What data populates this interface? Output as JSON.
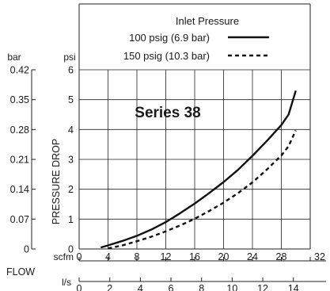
{
  "chart_data": {
    "type": "line",
    "title": "Series 38",
    "legend": {
      "title": "Inlet Pressure",
      "placement": "top",
      "entries": [
        {
          "label": "100 psig (6.9 bar)",
          "style": "solid"
        },
        {
          "label": "150 psig (10.3 bar)",
          "style": "dashed"
        }
      ]
    },
    "xlabel": "FLOW",
    "ylabel": "PRESSURE DROP",
    "x_axes": [
      {
        "unit": "scfm",
        "range": [
          0,
          32
        ],
        "ticks": [
          "0",
          "4",
          "8",
          "12",
          "16",
          "20",
          "24",
          "28",
          "32"
        ]
      },
      {
        "unit": "l/s",
        "range": [
          0,
          15.1
        ],
        "ticks": [
          "0",
          "2",
          "4",
          "6",
          "8",
          "10",
          "12",
          "14"
        ]
      }
    ],
    "y_axes": [
      {
        "unit": "psi",
        "range": [
          0,
          6
        ],
        "ticks": [
          "0",
          "1",
          "2",
          "3",
          "4",
          "5",
          "6"
        ]
      },
      {
        "unit": "bar",
        "range": [
          0,
          0.42
        ],
        "ticks": [
          "0",
          "0.07",
          "0.14",
          "0.21",
          "0.28",
          "0.35",
          "0.42"
        ]
      }
    ],
    "grid": true,
    "series": [
      {
        "name": "100 psig (6.9 bar)",
        "style": "solid",
        "x": [
          3.0,
          4.0,
          6.0,
          8.0,
          10.0,
          12.0,
          14.0,
          16.0,
          18.0,
          20.0,
          22.0,
          24.0,
          26.0,
          28.0,
          29.0,
          30.0
        ],
        "y": [
          0.05,
          0.12,
          0.27,
          0.44,
          0.65,
          0.9,
          1.2,
          1.52,
          1.87,
          2.24,
          2.65,
          3.12,
          3.62,
          4.15,
          4.5,
          5.3
        ]
      },
      {
        "name": "150 psig (10.3 bar)",
        "style": "dashed",
        "x": [
          4.0,
          6.0,
          8.0,
          10.0,
          12.0,
          14.0,
          16.0,
          18.0,
          20.0,
          22.0,
          24.0,
          26.0,
          28.0,
          29.0,
          30.0
        ],
        "y": [
          0.02,
          0.12,
          0.26,
          0.41,
          0.59,
          0.79,
          1.01,
          1.27,
          1.55,
          1.87,
          2.23,
          2.66,
          3.13,
          3.44,
          3.97
        ]
      }
    ]
  }
}
